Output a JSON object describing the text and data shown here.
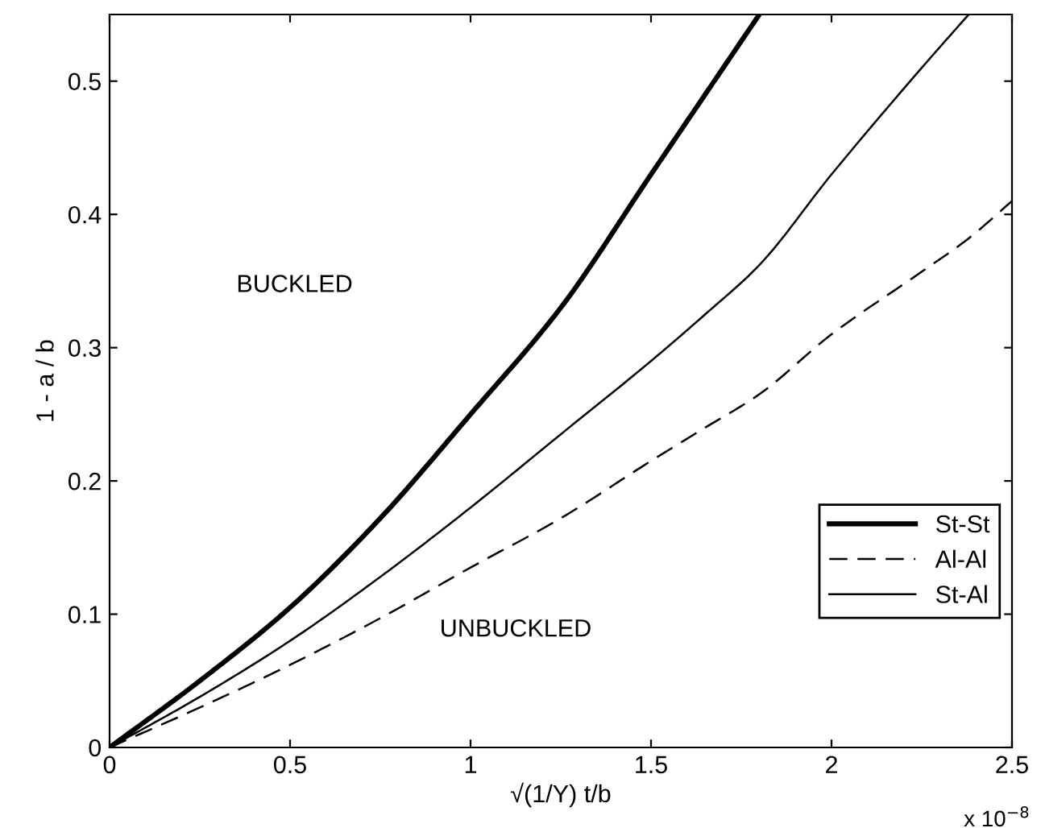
{
  "chart_data": {
    "type": "line",
    "xlabel": "√(1/Y) t/b",
    "ylabel": "1 - a / b",
    "x": [
      0,
      0.25,
      0.5,
      0.75,
      1,
      1.25,
      1.5,
      1.65,
      1.8,
      2,
      2.25,
      2.38,
      2.5
    ],
    "series": [
      {
        "name": "St-St",
        "color": "#000000",
        "line_style": "solid",
        "values": [
          0,
          0.05,
          0.105,
          0.172,
          0.25,
          0.33,
          0.43,
          0.49,
          0.55,
          null,
          null,
          null,
          null
        ]
      },
      {
        "name": "Al-Al",
        "color": "#000000",
        "line_style": "dashed",
        "values": [
          0,
          0.03,
          0.062,
          0.097,
          0.135,
          0.172,
          0.215,
          0.24,
          0.265,
          0.31,
          0.357,
          0.382,
          0.41
        ]
      },
      {
        "name": "St-Al",
        "color": "#000000",
        "line_style": "solid",
        "values": [
          0,
          0.038,
          0.08,
          0.128,
          0.18,
          0.235,
          0.29,
          0.325,
          0.362,
          0.43,
          0.51,
          0.55,
          null
        ]
      }
    ],
    "xlim": [
      0,
      2.5
    ],
    "xticks": [
      0,
      0.5,
      1,
      1.5,
      2,
      2.5
    ],
    "ylim": [
      0,
      0.55
    ],
    "yticks": [
      0,
      0.1,
      0.2,
      0.3,
      0.4,
      0.5
    ],
    "annotations": [
      "BUCKLED",
      "UNBUCKLED",
      "x 10$^{−8}$"
    ],
    "legend": "lower right",
    "grid": false,
    "marker": "none"
  }
}
